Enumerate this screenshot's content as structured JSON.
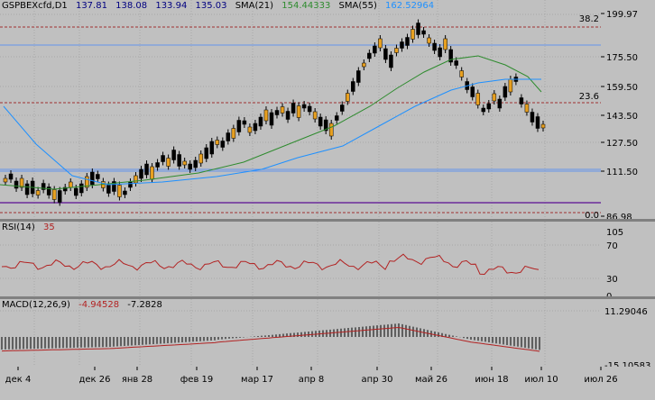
{
  "main": {
    "symbol": "GSPBEXcfd,D1",
    "ohlc": [
      "137.81",
      "138.08",
      "133.94",
      "135.03"
    ],
    "sma21_label": "SMA(21)",
    "sma21_value": "154.44333",
    "sma55_label": "SMA(55)",
    "sma55_value": "162.52964",
    "price_labels": [
      "199.97",
      "175.50",
      "159.50",
      "143.50",
      "127.50",
      "111.50",
      "86.98"
    ],
    "fib_labels": [
      "38.2",
      "23.6",
      "0.0"
    ]
  },
  "rsi": {
    "label": "RSI(14)",
    "value": "35",
    "ticks": [
      "105",
      "70",
      "30",
      "0"
    ]
  },
  "macd": {
    "label": "MACD(12,26,9)",
    "macd_value": "-4.94528",
    "signal_value": "-7.2828",
    "ticks": [
      "11.29046",
      "-15.10583"
    ]
  },
  "time_labels": [
    "дек 4",
    "дек 26",
    "янв 28",
    "фев 19",
    "мар 17",
    "апр 8",
    "апр 30",
    "май 26",
    "июн 18",
    "июл 10",
    "июл 26"
  ],
  "colors": {
    "bg": "#c0c0c0",
    "bull": "#000000",
    "bear": "#e8a020",
    "sma21": "#2e8b2e",
    "sma55": "#1e90ff",
    "hline": "#6495ed",
    "fib": "#a03030",
    "rsi": "#b22222",
    "macd_line": "#b22222",
    "purple": "#6a2a9a"
  }
}
